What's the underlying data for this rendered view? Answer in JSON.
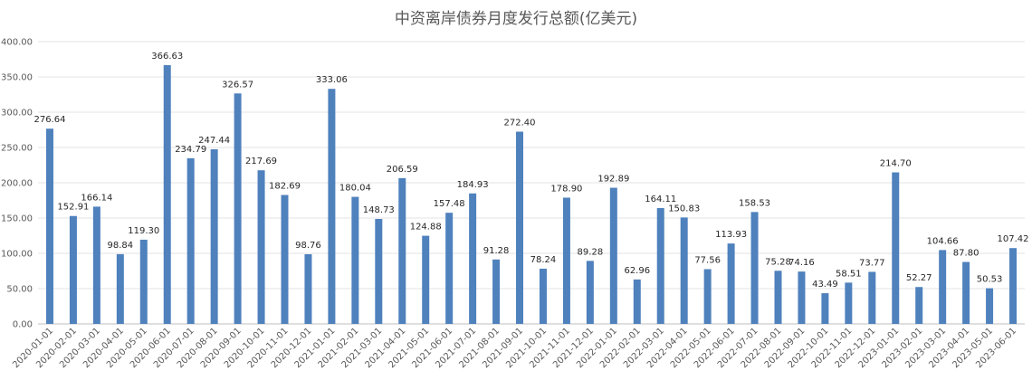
{
  "chart_data": {
    "type": "bar",
    "title": "中资离岸债券月度发行总额(亿美元)",
    "xlabel": "",
    "ylabel": "",
    "ylim": [
      0,
      400
    ],
    "yticks": [
      "0.00",
      "50.00",
      "100.00",
      "150.00",
      "200.00",
      "250.00",
      "300.00",
      "350.00",
      "400.00"
    ],
    "grid": true,
    "legend": "none",
    "bar_color": "#4f81bd",
    "categories": [
      "2020-01-01",
      "2020-02-01",
      "2020-03-01",
      "2020-04-01",
      "2020-05-01",
      "2020-06-01",
      "2020-07-01",
      "2020-08-01",
      "2020-09-01",
      "2020-10-01",
      "2020-11-01",
      "2020-12-01",
      "2021-01-01",
      "2021-02-01",
      "2021-03-01",
      "2021-04-01",
      "2021-05-01",
      "2021-06-01",
      "2021-07-01",
      "2021-08-01",
      "2021-09-01",
      "2021-10-01",
      "2021-11-01",
      "2021-12-01",
      "2022-01-01",
      "2022-02-01",
      "2022-03-01",
      "2022-04-01",
      "2022-05-01",
      "2022-06-01",
      "2022-07-01",
      "2022-08-01",
      "2022-09-01",
      "2022-10-01",
      "2022-11-01",
      "2022-12-01",
      "2023-01-01",
      "2023-02-01",
      "2023-03-01",
      "2023-04-01",
      "2023-05-01",
      "2023-06-01"
    ],
    "values": [
      276.64,
      152.91,
      166.14,
      98.84,
      119.3,
      366.63,
      234.79,
      247.44,
      326.57,
      217.69,
      182.69,
      98.76,
      333.06,
      180.04,
      148.73,
      206.59,
      124.88,
      157.48,
      184.93,
      91.28,
      272.4,
      78.24,
      178.9,
      89.28,
      192.89,
      62.96,
      164.11,
      150.83,
      77.56,
      113.93,
      158.53,
      75.28,
      74.16,
      43.49,
      58.51,
      73.77,
      214.7,
      52.27,
      104.66,
      87.8,
      50.53,
      107.42
    ],
    "data_labels": [
      "276.64",
      "152.91",
      "166.14",
      "98.84",
      "119.30",
      "366.63",
      "234.79",
      "247.44",
      "326.57",
      "217.69",
      "182.69",
      "98.76",
      "333.06",
      "180.04",
      "148.73",
      "206.59",
      "124.88",
      "157.48",
      "184.93",
      "91.28",
      "272.40",
      "78.24",
      "178.90",
      "89.28",
      "192.89",
      "62.96",
      "164.11",
      "150.83",
      "77.56",
      "113.93",
      "158.53",
      "75.28",
      "74.16",
      "43.49",
      "58.51",
      "73.77",
      "214.70",
      "52.27",
      "104.66",
      "87.80",
      "50.53",
      "107.42"
    ]
  }
}
